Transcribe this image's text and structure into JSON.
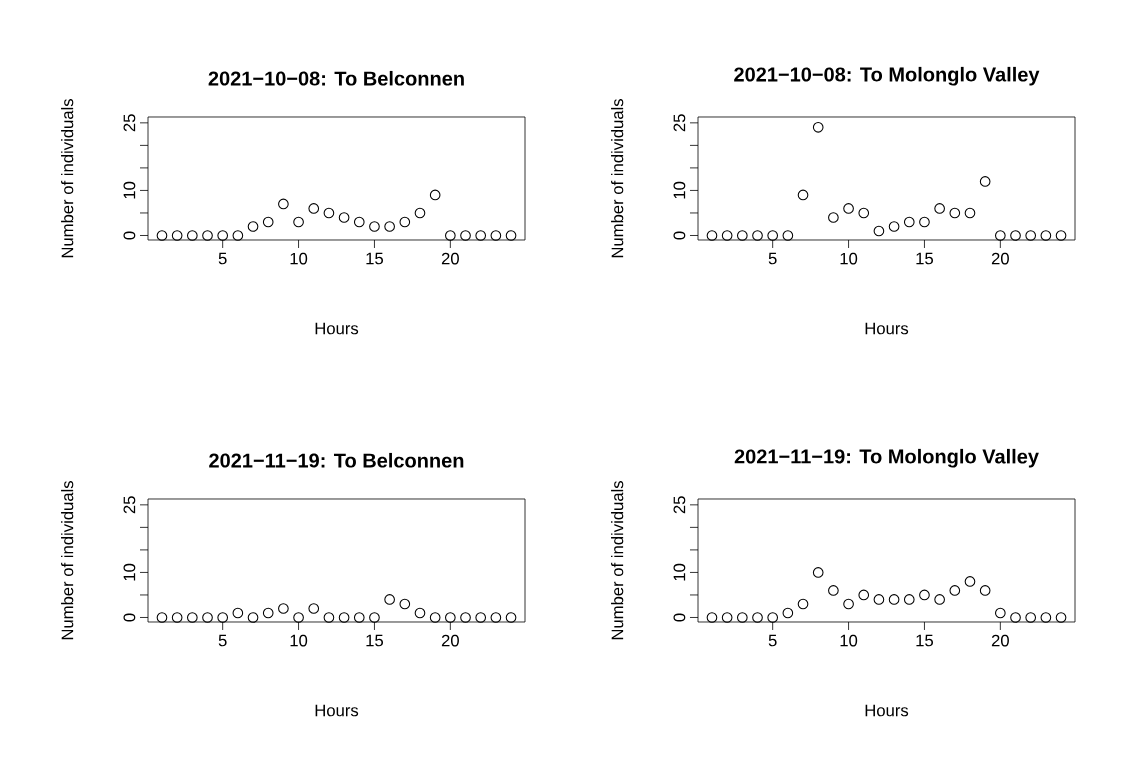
{
  "chart_data": [
    {
      "type": "scatter",
      "title": "2021−10−08: To Belconnen",
      "xlabel": "Hours",
      "ylabel": "Number of individuals",
      "marker": "circle",
      "color": "#000000",
      "xlim": [
        0.08,
        24.92
      ],
      "ylim": [
        -1,
        26.3
      ],
      "xticks": [
        5,
        10,
        15,
        20
      ],
      "yticks": [
        0,
        {
          "value": 5,
          "label": null
        },
        10,
        {
          "value": 15,
          "label": null
        },
        {
          "value": 20,
          "label": null
        },
        25
      ],
      "x": [
        1,
        2,
        3,
        4,
        5,
        6,
        7,
        8,
        9,
        10,
        11,
        12,
        13,
        14,
        15,
        16,
        17,
        18,
        19,
        20,
        21,
        22,
        23,
        24
      ],
      "values": [
        0,
        0,
        0,
        0,
        0,
        0,
        2,
        3,
        7,
        3,
        6,
        5,
        4,
        3,
        2,
        2,
        3,
        5,
        9,
        0,
        0,
        0,
        0,
        0
      ]
    },
    {
      "type": "scatter",
      "title": "2021−10−08: To Molonglo Valley",
      "xlabel": "Hours",
      "ylabel": "Number of individuals",
      "marker": "circle",
      "color": "#000000",
      "xlim": [
        0.08,
        24.92
      ],
      "ylim": [
        -1,
        26.3
      ],
      "xticks": [
        5,
        10,
        15,
        20
      ],
      "yticks": [
        0,
        {
          "value": 5,
          "label": null
        },
        10,
        {
          "value": 15,
          "label": null
        },
        {
          "value": 20,
          "label": null
        },
        25
      ],
      "x": [
        1,
        2,
        3,
        4,
        5,
        6,
        7,
        8,
        9,
        10,
        11,
        12,
        13,
        14,
        15,
        16,
        17,
        18,
        19,
        20,
        21,
        22,
        23,
        24
      ],
      "values": [
        0,
        0,
        0,
        0,
        0,
        0,
        9,
        24,
        4,
        6,
        5,
        1,
        2,
        3,
        3,
        6,
        5,
        5,
        12,
        0,
        0,
        0,
        0,
        0
      ]
    },
    {
      "type": "scatter",
      "title": "2021−11−19: To Belconnen",
      "xlabel": "Hours",
      "ylabel": "Number of individuals",
      "marker": "circle",
      "color": "#000000",
      "xlim": [
        0.08,
        24.92
      ],
      "ylim": [
        -1,
        26.3
      ],
      "xticks": [
        5,
        10,
        15,
        20
      ],
      "yticks": [
        0,
        {
          "value": 5,
          "label": null
        },
        10,
        {
          "value": 15,
          "label": null
        },
        {
          "value": 20,
          "label": null
        },
        25
      ],
      "x": [
        1,
        2,
        3,
        4,
        5,
        6,
        7,
        8,
        9,
        10,
        11,
        12,
        13,
        14,
        15,
        16,
        17,
        18,
        19,
        20,
        21,
        22,
        23,
        24
      ],
      "values": [
        0,
        0,
        0,
        0,
        0,
        1,
        0,
        1,
        2,
        0,
        2,
        0,
        0,
        0,
        0,
        4,
        3,
        1,
        0,
        0,
        0,
        0,
        0,
        0
      ]
    },
    {
      "type": "scatter",
      "title": "2021−11−19: To Molonglo Valley",
      "xlabel": "Hours",
      "ylabel": "Number of individuals",
      "marker": "circle",
      "color": "#000000",
      "xlim": [
        0.08,
        24.92
      ],
      "ylim": [
        -1,
        26.3
      ],
      "xticks": [
        5,
        10,
        15,
        20
      ],
      "yticks": [
        0,
        {
          "value": 5,
          "label": null
        },
        10,
        {
          "value": 15,
          "label": null
        },
        {
          "value": 20,
          "label": null
        },
        25
      ],
      "x": [
        1,
        2,
        3,
        4,
        5,
        6,
        7,
        8,
        9,
        10,
        11,
        12,
        13,
        14,
        15,
        16,
        17,
        18,
        19,
        20,
        21,
        22,
        23,
        24
      ],
      "values": [
        0,
        0,
        0,
        0,
        0,
        1,
        3,
        10,
        6,
        3,
        5,
        4,
        4,
        4,
        5,
        4,
        6,
        8,
        6,
        1,
        0,
        0,
        0,
        0
      ]
    }
  ]
}
